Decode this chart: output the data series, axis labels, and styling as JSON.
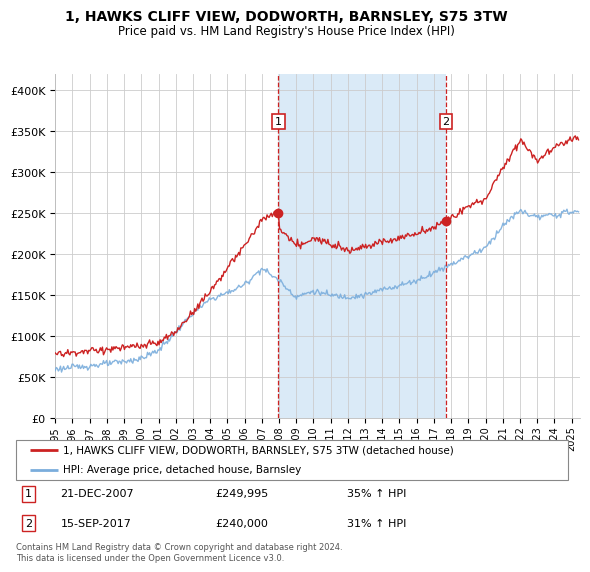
{
  "title": "1, HAWKS CLIFF VIEW, DODWORTH, BARNSLEY, S75 3TW",
  "subtitle": "Price paid vs. HM Land Registry's House Price Index (HPI)",
  "legend_line1": "1, HAWKS CLIFF VIEW, DODWORTH, BARNSLEY, S75 3TW (detached house)",
  "legend_line2": "HPI: Average price, detached house, Barnsley",
  "footnote": "Contains HM Land Registry data © Crown copyright and database right 2024.\nThis data is licensed under the Open Government Licence v3.0.",
  "sale1_date": "21-DEC-2007",
  "sale1_price": "£249,995",
  "sale1_hpi": "35% ↑ HPI",
  "sale1_year": 2007.97,
  "sale1_value": 249995,
  "sale2_date": "15-SEP-2017",
  "sale2_price": "£240,000",
  "sale2_hpi": "31% ↑ HPI",
  "sale2_year": 2017.71,
  "sale2_value": 240000,
  "hpi_color": "#7aaddc",
  "red_color": "#cc2222",
  "bg_shaded": "#daeaf7",
  "ylim": [
    0,
    420000
  ],
  "yticks": [
    0,
    50000,
    100000,
    150000,
    200000,
    250000,
    300000,
    350000,
    400000
  ],
  "ytick_labels": [
    "£0",
    "£50K",
    "£100K",
    "£150K",
    "£200K",
    "£250K",
    "£300K",
    "£350K",
    "£400K"
  ],
  "xmin": 1995,
  "xmax": 2025.5,
  "hpi_segments": [
    [
      1995,
      60000
    ],
    [
      1996,
      62000
    ],
    [
      1997,
      64000
    ],
    [
      1998,
      66500
    ],
    [
      1999,
      69000
    ],
    [
      2000,
      73000
    ],
    [
      2001,
      83000
    ],
    [
      2002,
      105000
    ],
    [
      2003,
      128000
    ],
    [
      2004,
      145000
    ],
    [
      2005,
      153000
    ],
    [
      2006,
      163000
    ],
    [
      2007,
      183000
    ],
    [
      2008,
      168000
    ],
    [
      2009,
      148000
    ],
    [
      2010,
      155000
    ],
    [
      2011,
      150000
    ],
    [
      2012,
      148000
    ],
    [
      2013,
      150000
    ],
    [
      2014,
      157000
    ],
    [
      2015,
      162000
    ],
    [
      2016,
      168000
    ],
    [
      2017,
      178000
    ],
    [
      2018,
      188000
    ],
    [
      2019,
      198000
    ],
    [
      2020,
      208000
    ],
    [
      2021,
      235000
    ],
    [
      2022,
      253000
    ],
    [
      2023,
      245000
    ],
    [
      2024,
      248000
    ],
    [
      2025,
      252000
    ]
  ],
  "red_segments": [
    [
      1995,
      78000
    ],
    [
      1996,
      80000
    ],
    [
      1997,
      82000
    ],
    [
      1998,
      84000
    ],
    [
      1999,
      86000
    ],
    [
      2000,
      88000
    ],
    [
      2001,
      92000
    ],
    [
      2002,
      105000
    ],
    [
      2003,
      130000
    ],
    [
      2004,
      155000
    ],
    [
      2005,
      183000
    ],
    [
      2006,
      210000
    ],
    [
      2007,
      242000
    ],
    [
      2007.97,
      249995
    ],
    [
      2008,
      232000
    ],
    [
      2009,
      210000
    ],
    [
      2010,
      218000
    ],
    [
      2011,
      215000
    ],
    [
      2012,
      205000
    ],
    [
      2013,
      210000
    ],
    [
      2014,
      215000
    ],
    [
      2015,
      220000
    ],
    [
      2016,
      225000
    ],
    [
      2017.71,
      240000
    ],
    [
      2018,
      245000
    ],
    [
      2019,
      258000
    ],
    [
      2020,
      268000
    ],
    [
      2021,
      305000
    ],
    [
      2022,
      340000
    ],
    [
      2023,
      315000
    ],
    [
      2024,
      330000
    ],
    [
      2025,
      342000
    ]
  ]
}
